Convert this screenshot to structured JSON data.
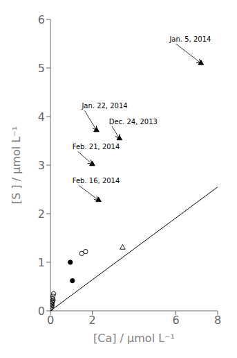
{
  "chart_data": {
    "type": "scatter",
    "xlabel": "[Ca] / μmol L⁻¹",
    "ylabel": "[S ] / μmol L⁻¹",
    "xlim": [
      0.0,
      8.0
    ],
    "ylim": [
      0.0,
      6.0
    ],
    "xticks": [
      0.0,
      2.0,
      6.0,
      8.0
    ],
    "yticks": [
      0.0,
      1.0,
      2.0,
      3.0,
      4.0,
      5.0,
      6.0
    ],
    "grid": false,
    "series": [
      {
        "type": "scatter",
        "marker": "circle-open",
        "color": "#000000",
        "x": [
          0.02,
          0.03,
          0.05,
          0.06,
          0.07,
          0.08,
          0.09,
          0.1,
          0.12,
          0.13,
          0.15,
          1.5,
          1.68
        ],
        "values": [
          0.05,
          0.1,
          0.15,
          0.08,
          0.2,
          0.12,
          0.25,
          0.18,
          0.3,
          0.22,
          0.35,
          1.18,
          1.22
        ]
      },
      {
        "type": "scatter",
        "marker": "circle",
        "color": "#000000",
        "x": [
          0.95,
          1.05
        ],
        "values": [
          1.0,
          0.62
        ]
      },
      {
        "type": "scatter",
        "marker": "triangle-up-open",
        "color": "#000000",
        "x": [
          3.45
        ],
        "values": [
          1.3
        ]
      },
      {
        "type": "scatter",
        "marker": "triangle-up",
        "color": "#000000",
        "x": [
          7.2,
          2.2,
          3.3,
          2.0,
          2.3
        ],
        "values": [
          5.1,
          3.72,
          3.55,
          3.02,
          2.28
        ]
      },
      {
        "type": "line",
        "color": "#000000",
        "x": [
          0.0,
          8.0
        ],
        "values": [
          0.0,
          2.55
        ]
      }
    ],
    "annotations": [
      {
        "text": "Jan. 5, 2014",
        "xy": [
          7.2,
          5.1
        ],
        "xytext": [
          5.7,
          5.6
        ]
      },
      {
        "text": "Jan. 22, 2014",
        "xy": [
          2.2,
          3.72
        ],
        "xytext": [
          1.5,
          4.22
        ]
      },
      {
        "text": "Dec. 24, 2013",
        "xy": [
          3.3,
          3.55
        ],
        "xytext": [
          2.8,
          3.9
        ]
      },
      {
        "text": "Feb. 21, 2014",
        "xy": [
          2.0,
          3.02
        ],
        "xytext": [
          1.05,
          3.38
        ]
      },
      {
        "text": "Feb. 16, 2014",
        "xy": [
          2.3,
          2.28
        ],
        "xytext": [
          1.05,
          2.68
        ]
      }
    ]
  }
}
